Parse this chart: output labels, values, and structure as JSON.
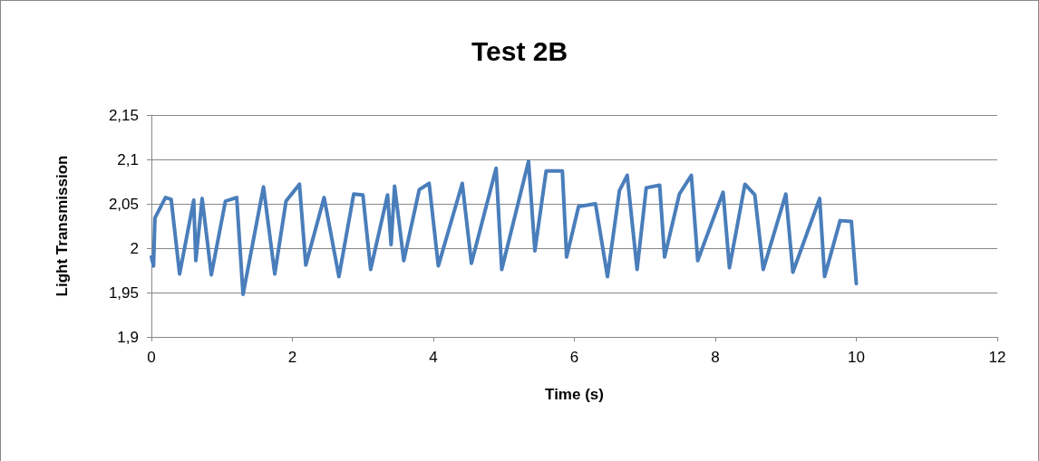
{
  "chart_data": {
    "type": "line",
    "title": "Test 2B",
    "xlabel": "Time (s)",
    "ylabel": "Light Transmission",
    "xlim": [
      0,
      12
    ],
    "xticks": [
      0,
      2,
      4,
      6,
      8,
      10,
      12
    ],
    "ylim": [
      1.9,
      2.15
    ],
    "yticks": [
      {
        "value": 1.9,
        "label": "1,9"
      },
      {
        "value": 1.95,
        "label": "1,95"
      },
      {
        "value": 2,
        "label": "2"
      },
      {
        "value": 2.05,
        "label": "2,05"
      },
      {
        "value": 2.1,
        "label": "2,1"
      },
      {
        "value": 2.15,
        "label": "2,15"
      }
    ],
    "grid": "y",
    "marker": "none",
    "line_style": "solid",
    "series": [
      {
        "color": "#4a7ebb",
        "x": [
          0.0,
          0.03,
          0.05,
          0.2,
          0.28,
          0.4,
          0.6,
          0.63,
          0.72,
          0.85,
          1.05,
          1.21,
          1.3,
          1.59,
          1.75,
          1.91,
          2.1,
          2.19,
          2.45,
          2.66,
          2.87,
          3.0,
          3.11,
          3.35,
          3.4,
          3.45,
          3.58,
          3.8,
          3.94,
          4.07,
          4.41,
          4.54,
          4.89,
          4.97,
          5.35,
          5.44,
          5.6,
          5.83,
          5.89,
          6.06,
          6.3,
          6.47,
          6.64,
          6.75,
          6.89,
          7.02,
          7.21,
          7.28,
          7.49,
          7.66,
          7.75,
          8.11,
          8.2,
          8.42,
          8.56,
          8.68,
          9.0,
          9.1,
          9.48,
          9.55,
          9.77,
          9.93,
          10.0
        ],
        "values": [
          1.99,
          1.98,
          2.034,
          2.057,
          2.055,
          1.971,
          2.054,
          1.986,
          2.056,
          1.97,
          2.053,
          2.057,
          1.948,
          2.069,
          1.971,
          2.053,
          2.072,
          1.981,
          2.057,
          1.968,
          2.061,
          2.06,
          1.976,
          2.06,
          2.004,
          2.07,
          1.986,
          2.066,
          2.073,
          1.98,
          2.073,
          1.983,
          2.09,
          1.976,
          2.098,
          1.997,
          2.087,
          2.087,
          1.99,
          2.047,
          2.05,
          1.968,
          2.065,
          2.082,
          1.976,
          2.068,
          2.071,
          1.99,
          2.061,
          2.082,
          1.986,
          2.063,
          1.978,
          2.072,
          2.06,
          1.976,
          2.061,
          1.973,
          2.056,
          1.968,
          2.031,
          2.03,
          1.96
        ]
      }
    ]
  }
}
